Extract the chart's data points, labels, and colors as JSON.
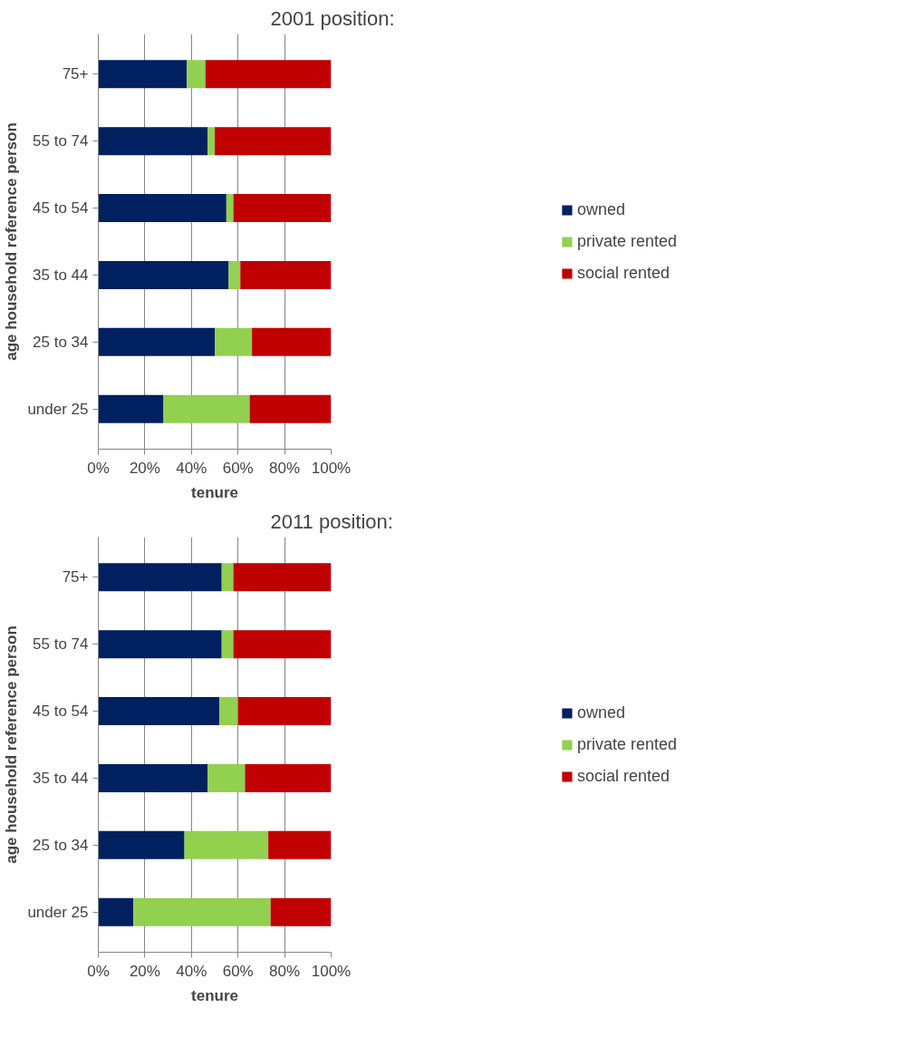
{
  "chart_data": [
    {
      "type": "bar",
      "title": "2001 position:",
      "orientation": "horizontal",
      "stacked": true,
      "categories": [
        "75+",
        "55 to 74",
        "45 to 54",
        "35 to 44",
        "25 to 34",
        "under 25"
      ],
      "xlabel": "tenure",
      "ylabel": "age household reference person",
      "xlim": [
        0,
        100
      ],
      "xticks": [
        {
          "value": 0,
          "label": "0%"
        },
        {
          "value": 20,
          "label": "20%"
        },
        {
          "value": 40,
          "label": "40%"
        },
        {
          "value": 60,
          "label": "60%"
        },
        {
          "value": 80,
          "label": "80%"
        },
        {
          "value": 100,
          "label": "100%"
        }
      ],
      "grid": "x",
      "legend": "right",
      "series": [
        {
          "name": "owned",
          "color": "#002060",
          "values": [
            38,
            47,
            55,
            56,
            50,
            28
          ]
        },
        {
          "name": "private rented",
          "color": "#92d050",
          "values": [
            8,
            3,
            3,
            5,
            16,
            37
          ]
        },
        {
          "name": "social rented",
          "color": "#c00000",
          "values": [
            54,
            50,
            42,
            39,
            34,
            35
          ]
        }
      ]
    },
    {
      "type": "bar",
      "title": "2011 position:",
      "orientation": "horizontal",
      "stacked": true,
      "categories": [
        "75+",
        "55 to 74",
        "45 to 54",
        "35 to 44",
        "25 to 34",
        "under 25"
      ],
      "xlabel": "tenure",
      "ylabel": "age household reference person",
      "xlim": [
        0,
        100
      ],
      "xticks": [
        {
          "value": 0,
          "label": "0%"
        },
        {
          "value": 20,
          "label": "20%"
        },
        {
          "value": 40,
          "label": "40%"
        },
        {
          "value": 60,
          "label": "60%"
        },
        {
          "value": 80,
          "label": "80%"
        },
        {
          "value": 100,
          "label": "100%"
        }
      ],
      "grid": "x",
      "legend": "right",
      "series": [
        {
          "name": "owned",
          "color": "#002060",
          "values": [
            53,
            53,
            52,
            47,
            37,
            15
          ]
        },
        {
          "name": "private rented",
          "color": "#92d050",
          "values": [
            5,
            5,
            8,
            16,
            36,
            59
          ]
        },
        {
          "name": "social rented",
          "color": "#c00000",
          "values": [
            42,
            42,
            40,
            37,
            27,
            26
          ]
        }
      ]
    }
  ]
}
